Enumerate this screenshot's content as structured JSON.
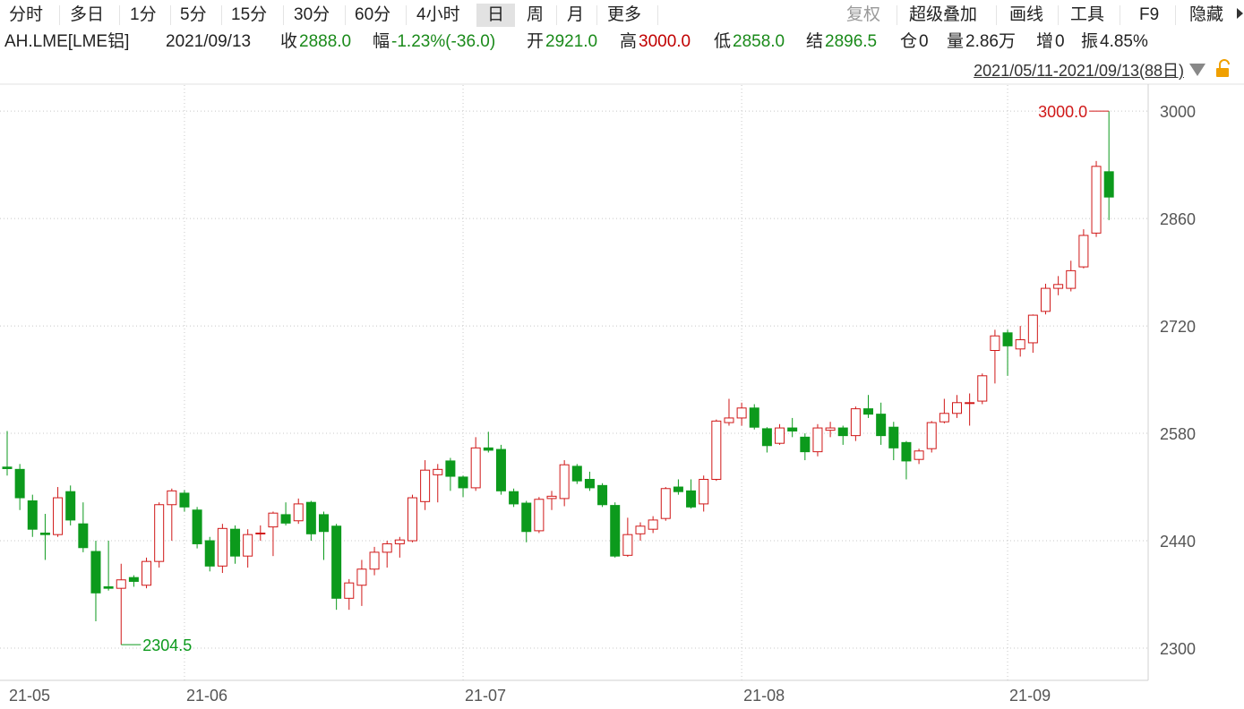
{
  "toolbar": {
    "periods": [
      "分时",
      "多日",
      "1分",
      "5分",
      "15分",
      "30分",
      "60分",
      "4小时",
      "日",
      "周",
      "月",
      "更多"
    ],
    "tools": [
      "复权",
      "超级叠加",
      "画线",
      "工具",
      "F9",
      "隐藏"
    ]
  },
  "info": {
    "symbol": "AH.LME[LME铝]",
    "date": "2021/09/13",
    "fields": [
      {
        "label": "收",
        "value": "2888.0",
        "color": "#1a8a1a"
      },
      {
        "label": "幅",
        "value": "-1.23%(-36.0)",
        "color": "#1a8a1a"
      },
      {
        "label": "开",
        "value": "2921.0",
        "color": "#1a8a1a"
      },
      {
        "label": "高",
        "value": "3000.0",
        "color": "#c00000"
      },
      {
        "label": "低",
        "value": "2858.0",
        "color": "#1a8a1a"
      },
      {
        "label": "结",
        "value": "2896.5",
        "color": "#1a8a1a"
      },
      {
        "label": "仓",
        "value": "0",
        "color": "#222222"
      },
      {
        "label": "量",
        "value": "2.86万",
        "color": "#222222"
      },
      {
        "label": "增",
        "value": "0",
        "color": "#222222"
      },
      {
        "label": "振",
        "value": "4.85%",
        "color": "#222222"
      }
    ]
  },
  "range": "2021/05/11-2021/09/13(88日)",
  "chart_data": {
    "type": "candlestick",
    "categories": [
      "21-05",
      null,
      null,
      null,
      null,
      null,
      null,
      null,
      null,
      null,
      null,
      null,
      null,
      null,
      "21-06",
      null,
      null,
      null,
      null,
      null,
      null,
      null,
      null,
      null,
      null,
      null,
      null,
      null,
      null,
      null,
      null,
      null,
      null,
      null,
      null,
      null,
      "21-07",
      null,
      null,
      null,
      null,
      null,
      null,
      null,
      null,
      null,
      null,
      null,
      null,
      null,
      null,
      null,
      null,
      null,
      null,
      null,
      null,
      null,
      "21-08",
      null,
      null,
      null,
      null,
      null,
      null,
      null,
      null,
      null,
      null,
      null,
      null,
      null,
      null,
      null,
      null,
      null,
      null,
      null,
      null,
      "21-09",
      null,
      null,
      null,
      null,
      null,
      null,
      null,
      null
    ],
    "open": [
      2536,
      2533,
      2492,
      2450,
      2448,
      2504,
      2462,
      2426,
      2380,
      2378,
      2392,
      2382,
      2413,
      2487,
      2502,
      2480,
      2440,
      2407,
      2455,
      2420,
      2449,
      2458,
      2474,
      2466,
      2490,
      2474,
      2459,
      2365,
      2382,
      2403,
      2425,
      2436,
      2440,
      2491,
      2526,
      2544,
      2523,
      2509,
      2561,
      2559,
      2504,
      2489,
      2453,
      2495,
      2495,
      2537,
      2520,
      2512,
      2486,
      2421,
      2449,
      2455,
      2469,
      2510,
      2505,
      2488,
      2520,
      2594,
      2600,
      2613,
      2586,
      2567,
      2587,
      2575,
      2556,
      2584,
      2587,
      2577,
      2612,
      2605,
      2588,
      2568,
      2546,
      2560,
      2595,
      2606,
      2619,
      2622,
      2688,
      2711,
      2690,
      2698,
      2739,
      2769,
      2769,
      2797,
      2841,
      2921
    ],
    "high": [
      2583,
      2540,
      2500,
      2475,
      2510,
      2512,
      2490,
      2440,
      2440,
      2410,
      2395,
      2418,
      2490,
      2508,
      2506,
      2484,
      2445,
      2462,
      2460,
      2455,
      2460,
      2478,
      2490,
      2495,
      2492,
      2478,
      2462,
      2390,
      2415,
      2432,
      2440,
      2445,
      2500,
      2545,
      2540,
      2548,
      2525,
      2575,
      2582,
      2565,
      2508,
      2492,
      2497,
      2505,
      2545,
      2540,
      2530,
      2515,
      2490,
      2470,
      2464,
      2472,
      2510,
      2520,
      2520,
      2525,
      2598,
      2625,
      2620,
      2618,
      2588,
      2592,
      2600,
      2580,
      2592,
      2595,
      2590,
      2615,
      2630,
      2620,
      2595,
      2570,
      2560,
      2596,
      2625,
      2630,
      2632,
      2658,
      2715,
      2715,
      2720,
      2735,
      2775,
      2785,
      2805,
      2846,
      2935,
      3000
    ],
    "low": [
      2525,
      2480,
      2445,
      2415,
      2445,
      2460,
      2425,
      2335,
      2375,
      2304.5,
      2380,
      2378,
      2405,
      2440,
      2478,
      2430,
      2400,
      2398,
      2410,
      2405,
      2440,
      2420,
      2460,
      2462,
      2440,
      2415,
      2350,
      2350,
      2355,
      2395,
      2405,
      2418,
      2438,
      2480,
      2490,
      2505,
      2497,
      2505,
      2555,
      2500,
      2484,
      2438,
      2450,
      2480,
      2485,
      2514,
      2505,
      2484,
      2418,
      2419,
      2440,
      2450,
      2466,
      2500,
      2482,
      2478,
      2518,
      2590,
      2590,
      2585,
      2555,
      2565,
      2575,
      2545,
      2550,
      2575,
      2565,
      2570,
      2600,
      2565,
      2545,
      2520,
      2540,
      2555,
      2593,
      2600,
      2590,
      2618,
      2645,
      2655,
      2680,
      2685,
      2735,
      2760,
      2765,
      2795,
      2836,
      2858
    ],
    "close": [
      2534,
      2496,
      2455,
      2448,
      2496,
      2467,
      2431,
      2372,
      2378,
      2389,
      2387,
      2413,
      2487,
      2505,
      2484,
      2436,
      2407,
      2456,
      2420,
      2448,
      2450,
      2476,
      2463,
      2488,
      2449,
      2452,
      2365,
      2385,
      2403,
      2425,
      2436,
      2441,
      2496,
      2532,
      2533,
      2524,
      2509,
      2561,
      2558,
      2505,
      2488,
      2452,
      2494,
      2498,
      2539,
      2518,
      2509,
      2487,
      2420,
      2448,
      2459,
      2467,
      2508,
      2504,
      2484,
      2520,
      2596,
      2600,
      2613,
      2588,
      2564,
      2587,
      2583,
      2556,
      2587,
      2587,
      2577,
      2612,
      2605,
      2577,
      2561,
      2544,
      2557,
      2594,
      2606,
      2620,
      2620,
      2655,
      2707,
      2694,
      2702,
      2734,
      2769,
      2774,
      2792,
      2838,
      2928,
      2888
    ],
    "up_color": "#d01818",
    "down_color": "#0c9a1c",
    "max_label": "3000.0",
    "min_label": "2304.5",
    "ylim": [
      2258,
      3034
    ],
    "yticks": [
      2300,
      2440,
      2580,
      2720,
      2860,
      3000
    ],
    "grid": true
  }
}
